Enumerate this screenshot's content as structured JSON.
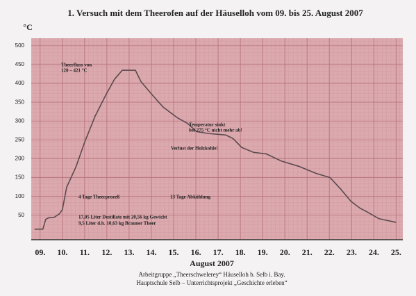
{
  "chart_data": {
    "type": "line",
    "title": "1. Versuch mit dem Theerofen auf der Häuselloh vom 09. bis 25. August 2007",
    "ylabel": "°C",
    "xlabel": "August 2007",
    "x": [
      8.75,
      9.12,
      9.25,
      9.37,
      9.62,
      9.87,
      10.0,
      10.19,
      10.62,
      11.0,
      11.47,
      11.94,
      12.34,
      12.69,
      13.28,
      13.53,
      14.06,
      14.53,
      15.16,
      15.62,
      16.03,
      16.56,
      17.34,
      17.66,
      18.06,
      18.59,
      19.16,
      19.84,
      20.62,
      21.41,
      22.03,
      22.5,
      22.97,
      23.37,
      23.75,
      24.22,
      25.0
    ],
    "series": [
      {
        "color": "#5a4a4e",
        "values": [
          13,
          13,
          39,
          43,
          44,
          54,
          65,
          124,
          180,
          244,
          313,
          368,
          411,
          435,
          435,
          405,
          368,
          337,
          309,
          294,
          272,
          267,
          263,
          254,
          230,
          217,
          213,
          194,
          180,
          161,
          150,
          120,
          87,
          69,
          57,
          41,
          31
        ]
      }
    ],
    "xlim": [
      8.6,
      25.3
    ],
    "ylim": [
      -15,
      520
    ],
    "xticks": [
      {
        "value": 9,
        "label": "09."
      },
      {
        "value": 10,
        "label": "10."
      },
      {
        "value": 11,
        "label": "11."
      },
      {
        "value": 12,
        "label": "12."
      },
      {
        "value": 13,
        "label": "13."
      },
      {
        "value": 14,
        "label": "14."
      },
      {
        "value": 15,
        "label": "15."
      },
      {
        "value": 16,
        "label": "16."
      },
      {
        "value": 17,
        "label": "17."
      },
      {
        "value": 18,
        "label": "18."
      },
      {
        "value": 19,
        "label": "19."
      },
      {
        "value": 20,
        "label": "20."
      },
      {
        "value": 21,
        "label": "21."
      },
      {
        "value": 22,
        "label": "22."
      },
      {
        "value": 23,
        "label": "23."
      },
      {
        "value": 24,
        "label": "24."
      },
      {
        "value": 25,
        "label": "25."
      }
    ],
    "yticks": [
      50,
      100,
      150,
      200,
      250,
      300,
      350,
      400,
      450,
      500
    ],
    "grid": true,
    "annotations": [
      "Theerfluss von",
      "120 – 421 °C",
      "Temperatur sinkt",
      "bei 275 °C nicht mehr ab!",
      "Verlust der Holzkohle!",
      "4 Tage Theerprozeß",
      "13 Tage Abkühlung",
      "17,05 Liter Destillate mit 20,56 kg Gewicht",
      "9,5 Liter d.h. 10,63 kg Brauner Theer"
    ],
    "footer": [
      "Arbeitgruppe „Theerschwelerey“ Häuselloh b. Selb i. Bay.",
      "Hauptschule Selb – Unterrichtsprojekt „Geschichte erleben“"
    ]
  }
}
